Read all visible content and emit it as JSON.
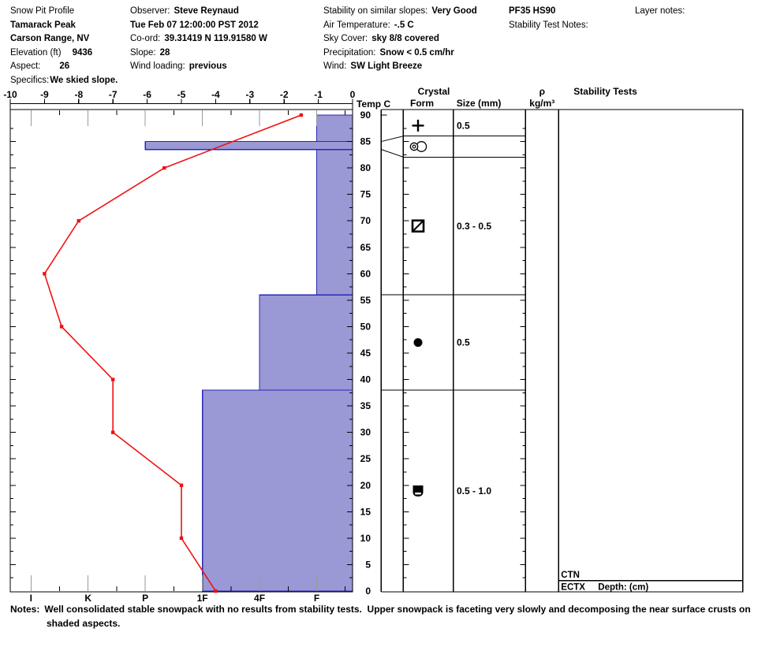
{
  "header": {
    "col1": {
      "title": "Snow Pit Profile",
      "location1": "Tamarack Peak",
      "location2": "Carson Range, NV",
      "elevation_label": "Elevation (ft)",
      "elevation_value": "9436",
      "aspect_label": "Aspect:",
      "aspect_value": "26",
      "specifics_label": "Specifics:",
      "specifics_value": "We skied slope."
    },
    "col2": {
      "observer_label": "Observer:",
      "observer_value": "Steve Reynaud",
      "datetime": "Tue Feb 07 12:00:00 PST 2012",
      "coord_label": "Co-ord:",
      "coord_value": "39.31419 N 119.91580 W",
      "slope_label": "Slope:",
      "slope_value": "28",
      "wind_loading_label": "Wind loading:",
      "wind_loading_value": "previous"
    },
    "col3": {
      "stability_label": "Stability on similar slopes:",
      "stability_value": "Very Good",
      "air_temp_label": "Air Temperature:",
      "air_temp_value": "-.5 C",
      "sky_label": "Sky Cover:",
      "sky_value": "sky 8/8 covered",
      "precip_label": "Precipitation:",
      "precip_value": "Snow < 0.5 cm/hr",
      "wind_label": "Wind:",
      "wind_value": "SW Light Breeze"
    },
    "col4": {
      "pit_code": "PF35 HS90",
      "stability_test_notes_label": "Stability Test Notes:"
    },
    "col5": {
      "layer_notes_label": "Layer notes:"
    }
  },
  "panel": {
    "temp_c_header": "Temp C",
    "crystal_header": "Crystal",
    "form_header": "Form",
    "size_header": "Size (mm)",
    "rho_header": "ρ",
    "rho_units": "kg/m³",
    "stability_tests_header": "Stability Tests"
  },
  "stability": {
    "ctn": "CTN",
    "ectx": "ECTX",
    "ectx_depth": "Depth: (cm)"
  },
  "chart_data": {
    "type": "snow-pit-profile",
    "title": "Snow Pit Profile",
    "temp_axis": {
      "label": "Temp C",
      "min": -10,
      "max": 0,
      "step": 1,
      "position": "top"
    },
    "depth_axis": {
      "unit": "cm",
      "min": 0,
      "max": 90,
      "label_step": 5,
      "position": "right"
    },
    "hardness_scale": [
      "I",
      "K",
      "P",
      "1F",
      "4F",
      "F"
    ],
    "temperature_profile_c": [
      {
        "depth_cm": 90,
        "temp_c": -1.5
      },
      {
        "depth_cm": 80,
        "temp_c": -5.5
      },
      {
        "depth_cm": 70,
        "temp_c": -8
      },
      {
        "depth_cm": 60,
        "temp_c": -9
      },
      {
        "depth_cm": 50,
        "temp_c": -8.5
      },
      {
        "depth_cm": 40,
        "temp_c": -7
      },
      {
        "depth_cm": 30,
        "temp_c": -7
      },
      {
        "depth_cm": 20,
        "temp_c": -5
      },
      {
        "depth_cm": 10,
        "temp_c": -5
      },
      {
        "depth_cm": 0,
        "temp_c": -4
      }
    ],
    "hardness_layers": [
      {
        "top_cm": 90,
        "bottom_cm": 85,
        "hardness": "F"
      },
      {
        "top_cm": 85,
        "bottom_cm": 83.5,
        "hardness": "P"
      },
      {
        "top_cm": 83.5,
        "bottom_cm": 56,
        "hardness": "F"
      },
      {
        "top_cm": 56,
        "bottom_cm": 38,
        "hardness": "4F"
      },
      {
        "top_cm": 38,
        "bottom_cm": 0,
        "hardness": "1F"
      }
    ],
    "crystal_layers": [
      {
        "top_cm": 90,
        "bottom_cm": 85,
        "form_symbol": "plus",
        "size_mm": "0.5"
      },
      {
        "top_cm": 85,
        "bottom_cm": 83.5,
        "form_symbol": "circle-pair",
        "size_mm": ""
      },
      {
        "top_cm": 83.5,
        "bottom_cm": 56,
        "form_symbol": "square-slash",
        "size_mm": "0.3 - 0.5"
      },
      {
        "top_cm": 56,
        "bottom_cm": 38,
        "form_symbol": "filled-circle",
        "size_mm": "0.5"
      },
      {
        "top_cm": 38,
        "bottom_cm": 0,
        "form_symbol": "filled-cup",
        "size_mm": "0.5 - 1.0"
      }
    ],
    "colors": {
      "bar_fill": "#9a99d6",
      "bar_border": "#2828b4",
      "temp_line": "#ee1111",
      "tick_gray": "#999999"
    }
  },
  "notes": {
    "label": "Notes:",
    "line1": "Well consolidated stable snowpack with no results from stability tests.  Upper snowpack is faceting very slowly and decomposing the near surface crusts on",
    "line2": "shaded aspects."
  }
}
